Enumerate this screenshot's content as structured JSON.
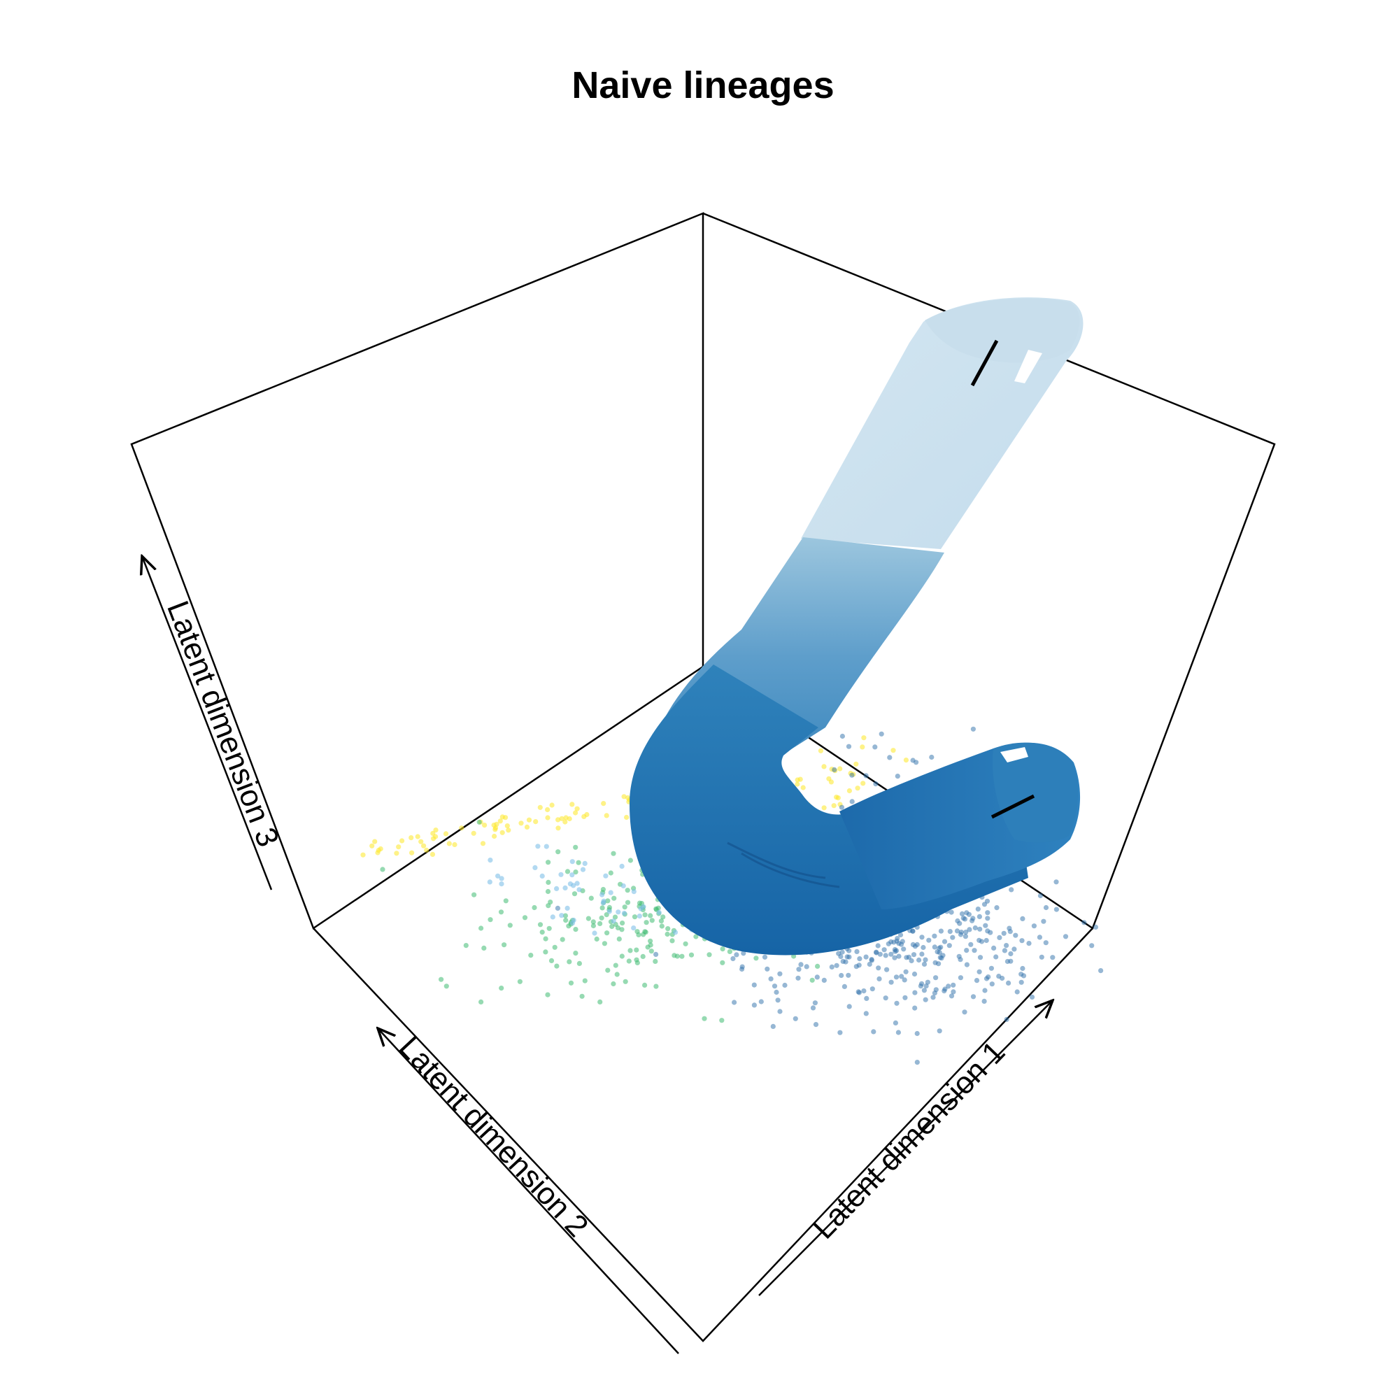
{
  "chart_data": {
    "type": "scatter",
    "title": "Naive lineages",
    "xlabel": "Latent dimension 1",
    "ylabel": "Latent dimension 2",
    "zlabel": "Latent dimension 3",
    "projection": "3d-perspective",
    "grid": false,
    "legend": "none",
    "point_colors": [
      "#fde725",
      "#3fbc73",
      "#2e6faa",
      "#7fbfe8"
    ],
    "tube_colors": [
      "#cce2ef",
      "#8cbcda",
      "#5a9fcc",
      "#2c7fb8",
      "#1763a6"
    ],
    "series": [
      {
        "group": "lineage-tube",
        "kind": "tube"
      },
      {
        "group": "cells",
        "kind": "points"
      }
    ]
  }
}
